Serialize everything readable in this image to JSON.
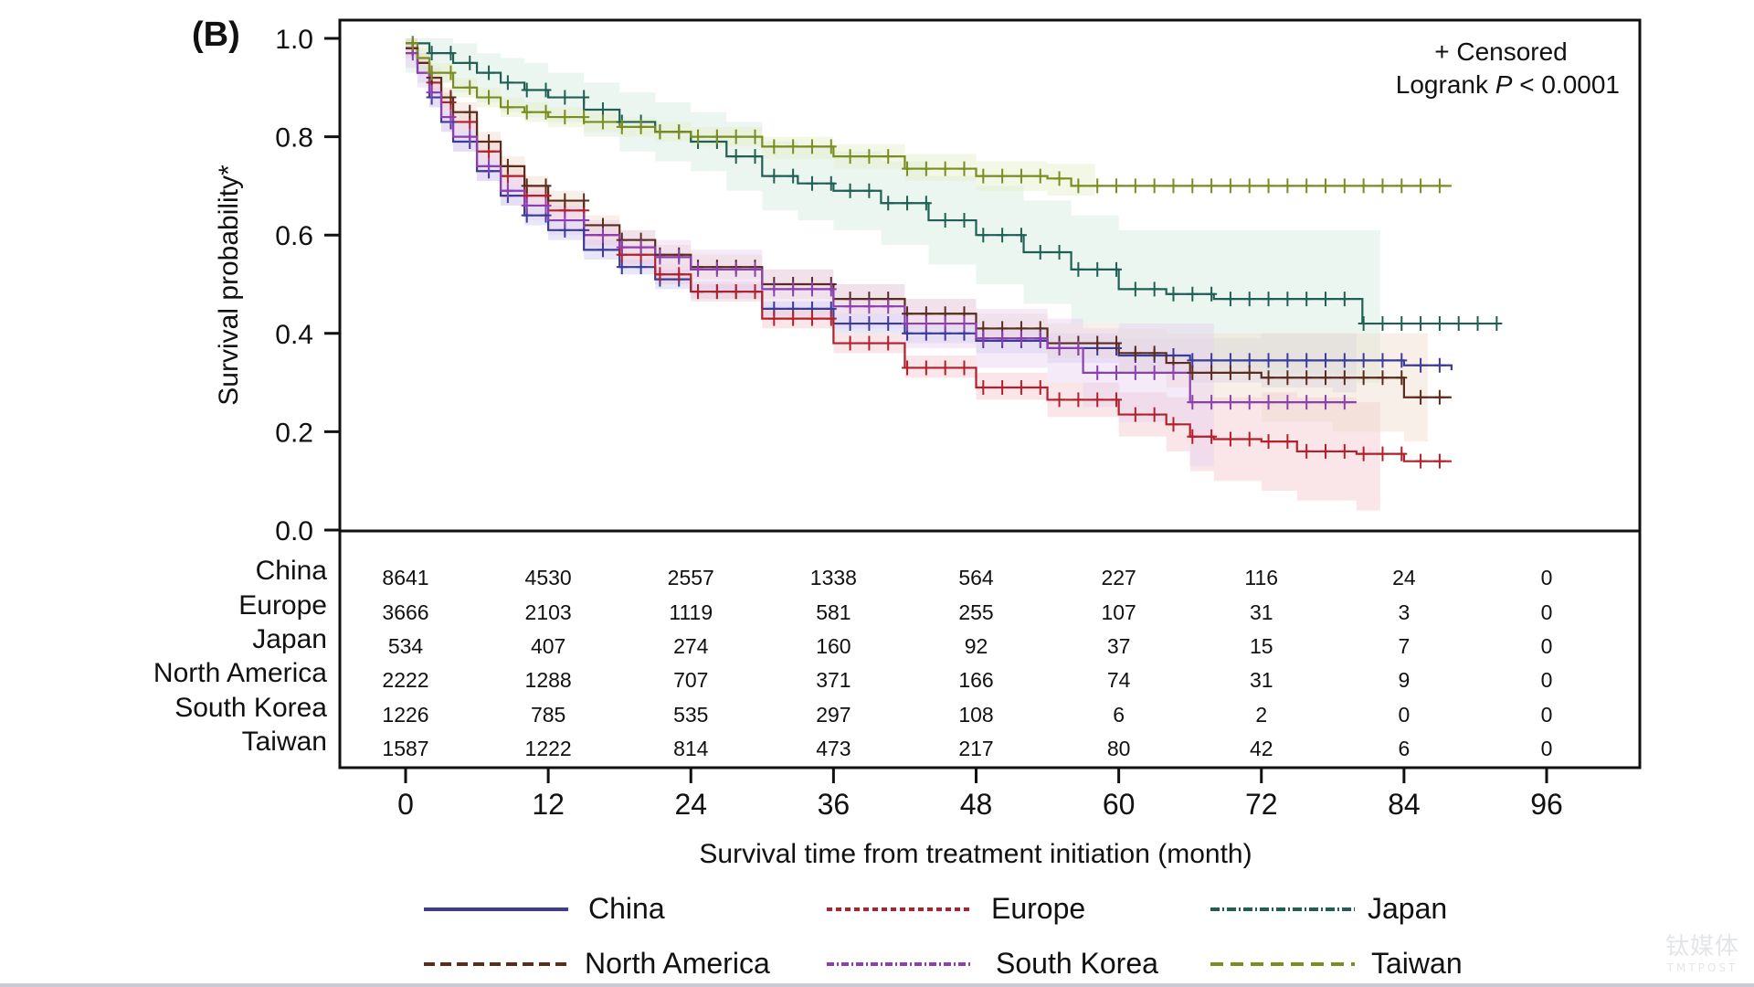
{
  "chart_data": {
    "type": "line",
    "subtype": "kaplan-meier",
    "panel_label": "(B)",
    "title": "",
    "xlabel": "Survival time from treatment initiation (month)",
    "ylabel": "Survival probability*",
    "xlim": [
      0,
      96
    ],
    "ylim": [
      0,
      1.0
    ],
    "x_ticks": [
      0,
      12,
      24,
      36,
      48,
      60,
      72,
      84,
      96
    ],
    "y_ticks": [
      0.0,
      0.2,
      0.4,
      0.6,
      0.8,
      1.0
    ],
    "y_tick_labels": [
      "0.0",
      "0.2",
      "0.4",
      "0.6",
      "0.8",
      "1.0"
    ],
    "grid": false,
    "annotation": {
      "censored_label": "+ Censored",
      "logrank_prefix": "Logrank ",
      "logrank_p": "P",
      "logrank_suffix": " < 0.0001"
    },
    "legend_position": "bottom",
    "series": [
      {
        "name": "China",
        "color": "#3b3b9a",
        "dash": "solid",
        "band": "#c9c9ee",
        "x": [
          0,
          1,
          2,
          3,
          4,
          6,
          8,
          10,
          12,
          15,
          18,
          21,
          24,
          30,
          36,
          42,
          48,
          54,
          60,
          66,
          72,
          78,
          84,
          88
        ],
        "y": [
          0.98,
          0.93,
          0.88,
          0.83,
          0.79,
          0.73,
          0.68,
          0.64,
          0.61,
          0.57,
          0.535,
          0.51,
          0.485,
          0.45,
          0.42,
          0.4,
          0.385,
          0.37,
          0.355,
          0.345,
          0.345,
          0.345,
          0.335,
          0.325
        ],
        "band_lo": [
          0.96,
          0.91,
          0.86,
          0.81,
          0.77,
          0.71,
          0.66,
          0.62,
          0.59,
          0.55,
          0.52,
          0.49,
          0.47,
          0.435,
          0.4,
          0.38,
          0.36,
          0.34,
          0.32,
          0.3,
          0.29,
          0.28
        ],
        "band_hi": [
          1.0,
          0.95,
          0.9,
          0.85,
          0.81,
          0.75,
          0.7,
          0.66,
          0.63,
          0.59,
          0.55,
          0.53,
          0.5,
          0.465,
          0.44,
          0.42,
          0.41,
          0.4,
          0.39,
          0.39,
          0.4,
          0.4
        ]
      },
      {
        "name": "Europe",
        "color": "#b3202a",
        "dash": "6,4",
        "band": "#f5c6cf",
        "x": [
          0,
          1,
          2,
          3,
          4,
          6,
          8,
          10,
          12,
          15,
          18,
          21,
          24,
          30,
          36,
          42,
          48,
          54,
          60,
          64,
          66,
          68,
          72,
          75,
          80,
          84,
          88
        ],
        "y": [
          0.98,
          0.95,
          0.91,
          0.87,
          0.83,
          0.77,
          0.72,
          0.68,
          0.65,
          0.6,
          0.56,
          0.52,
          0.485,
          0.43,
          0.38,
          0.33,
          0.29,
          0.265,
          0.235,
          0.215,
          0.19,
          0.185,
          0.18,
          0.16,
          0.155,
          0.14,
          0.14
        ],
        "band_lo": [
          0.96,
          0.93,
          0.89,
          0.85,
          0.81,
          0.75,
          0.7,
          0.66,
          0.63,
          0.58,
          0.54,
          0.5,
          0.465,
          0.41,
          0.36,
          0.31,
          0.265,
          0.23,
          0.19,
          0.16,
          0.12,
          0.1,
          0.08,
          0.06,
          0.04
        ],
        "band_hi": [
          1.0,
          0.97,
          0.93,
          0.89,
          0.85,
          0.79,
          0.74,
          0.7,
          0.67,
          0.62,
          0.58,
          0.54,
          0.505,
          0.45,
          0.4,
          0.355,
          0.32,
          0.3,
          0.28,
          0.27,
          0.26,
          0.27,
          0.28,
          0.27,
          0.26
        ]
      },
      {
        "name": "Japan",
        "color": "#1f5f54",
        "dash": "10,3,2,3",
        "band": "#d2ece0",
        "x": [
          0,
          2,
          4,
          6,
          8,
          10,
          12,
          15,
          18,
          21,
          24,
          27,
          30,
          33,
          36,
          40,
          44,
          48,
          52,
          56,
          60,
          64,
          68,
          72,
          80,
          80.5,
          84,
          92
        ],
        "y": [
          0.99,
          0.97,
          0.95,
          0.93,
          0.91,
          0.895,
          0.88,
          0.855,
          0.83,
          0.81,
          0.79,
          0.76,
          0.72,
          0.705,
          0.69,
          0.665,
          0.63,
          0.6,
          0.565,
          0.53,
          0.49,
          0.48,
          0.47,
          0.47,
          0.47,
          0.42,
          0.42,
          0.42
        ],
        "band_lo": [
          0.93,
          0.91,
          0.89,
          0.87,
          0.85,
          0.84,
          0.83,
          0.8,
          0.77,
          0.75,
          0.73,
          0.69,
          0.65,
          0.63,
          0.61,
          0.58,
          0.54,
          0.5,
          0.46,
          0.42,
          0.37,
          0.35,
          0.33,
          0.32,
          0.3
        ],
        "band_hi": [
          1.0,
          1.0,
          0.99,
          0.97,
          0.96,
          0.95,
          0.93,
          0.91,
          0.89,
          0.87,
          0.85,
          0.83,
          0.79,
          0.78,
          0.77,
          0.75,
          0.72,
          0.7,
          0.67,
          0.64,
          0.61,
          0.61,
          0.61,
          0.61,
          0.61
        ]
      },
      {
        "name": "North America",
        "color": "#5a2c1e",
        "dash": "12,6",
        "band": "#f0dccb",
        "x": [
          0,
          1,
          2,
          3,
          4,
          6,
          8,
          10,
          12,
          15,
          18,
          21,
          24,
          30,
          36,
          42,
          48,
          54,
          60,
          64,
          66,
          72,
          78,
          84,
          88
        ],
        "y": [
          0.98,
          0.95,
          0.92,
          0.88,
          0.85,
          0.79,
          0.74,
          0.7,
          0.67,
          0.62,
          0.59,
          0.56,
          0.535,
          0.5,
          0.47,
          0.44,
          0.41,
          0.38,
          0.36,
          0.34,
          0.32,
          0.31,
          0.31,
          0.27,
          0.27
        ],
        "band_lo": [
          0.96,
          0.93,
          0.9,
          0.86,
          0.83,
          0.77,
          0.72,
          0.68,
          0.65,
          0.6,
          0.57,
          0.54,
          0.51,
          0.47,
          0.44,
          0.41,
          0.38,
          0.35,
          0.32,
          0.29,
          0.26,
          0.22,
          0.2,
          0.18
        ],
        "band_hi": [
          1.0,
          0.97,
          0.94,
          0.9,
          0.87,
          0.81,
          0.76,
          0.72,
          0.69,
          0.64,
          0.61,
          0.58,
          0.56,
          0.53,
          0.5,
          0.47,
          0.44,
          0.42,
          0.41,
          0.4,
          0.4,
          0.4,
          0.4,
          0.4
        ]
      },
      {
        "name": "South Korea",
        "color": "#8b3fb0",
        "dash": "8,3,2,3",
        "band": "#e6d0ef",
        "x": [
          0,
          1,
          2,
          3,
          4,
          6,
          8,
          10,
          12,
          15,
          18,
          21,
          24,
          30,
          36,
          42,
          48,
          54,
          57,
          60,
          66,
          72,
          80
        ],
        "y": [
          0.97,
          0.93,
          0.89,
          0.84,
          0.8,
          0.74,
          0.69,
          0.66,
          0.63,
          0.6,
          0.575,
          0.555,
          0.53,
          0.49,
          0.455,
          0.42,
          0.39,
          0.37,
          0.32,
          0.32,
          0.26,
          0.26,
          0.26
        ],
        "band_lo": [
          0.94,
          0.9,
          0.86,
          0.81,
          0.77,
          0.71,
          0.66,
          0.63,
          0.6,
          0.57,
          0.54,
          0.52,
          0.49,
          0.45,
          0.41,
          0.37,
          0.33,
          0.3,
          0.25,
          0.22,
          0.13
        ],
        "band_hi": [
          1.0,
          0.96,
          0.92,
          0.87,
          0.83,
          0.77,
          0.72,
          0.69,
          0.66,
          0.63,
          0.61,
          0.59,
          0.57,
          0.53,
          0.5,
          0.47,
          0.45,
          0.43,
          0.41,
          0.42,
          0.42
        ]
      },
      {
        "name": "Taiwan",
        "color": "#7b8c20",
        "dash": "14,8",
        "band": "#e5eec8",
        "x": [
          0,
          1,
          2,
          4,
          6,
          8,
          10,
          12,
          15,
          18,
          21,
          24,
          30,
          36,
          42,
          48,
          54,
          56,
          60,
          72,
          84,
          88
        ],
        "y": [
          0.99,
          0.96,
          0.93,
          0.9,
          0.88,
          0.86,
          0.85,
          0.84,
          0.83,
          0.82,
          0.81,
          0.8,
          0.78,
          0.76,
          0.735,
          0.72,
          0.715,
          0.7,
          0.7,
          0.7,
          0.7,
          0.7
        ],
        "band_lo": [
          0.97,
          0.94,
          0.91,
          0.88,
          0.86,
          0.84,
          0.83,
          0.82,
          0.81,
          0.8,
          0.79,
          0.78,
          0.755,
          0.735,
          0.71,
          0.69,
          0.68,
          0.68
        ],
        "band_hi": [
          1.0,
          0.98,
          0.95,
          0.92,
          0.9,
          0.88,
          0.87,
          0.86,
          0.85,
          0.84,
          0.83,
          0.82,
          0.8,
          0.785,
          0.765,
          0.75,
          0.745,
          0.745
        ]
      }
    ],
    "risk_table": {
      "times": [
        0,
        12,
        24,
        36,
        48,
        60,
        72,
        84,
        96
      ],
      "rows": [
        {
          "label": "China",
          "values": [
            8641,
            4530,
            2557,
            1338,
            564,
            227,
            116,
            24,
            0
          ]
        },
        {
          "label": "Europe",
          "values": [
            3666,
            2103,
            1119,
            581,
            255,
            107,
            31,
            3,
            0
          ]
        },
        {
          "label": "Japan",
          "values": [
            534,
            407,
            274,
            160,
            92,
            37,
            15,
            7,
            0
          ]
        },
        {
          "label": "North America",
          "values": [
            2222,
            1288,
            707,
            371,
            166,
            74,
            31,
            9,
            0
          ]
        },
        {
          "label": "South Korea",
          "values": [
            1226,
            785,
            535,
            297,
            108,
            6,
            2,
            0,
            0
          ]
        },
        {
          "label": "Taiwan",
          "values": [
            1587,
            1222,
            814,
            473,
            217,
            80,
            42,
            6,
            0
          ]
        }
      ]
    }
  },
  "watermark": {
    "cn": "钛媒体",
    "en": "TMTPOST"
  }
}
